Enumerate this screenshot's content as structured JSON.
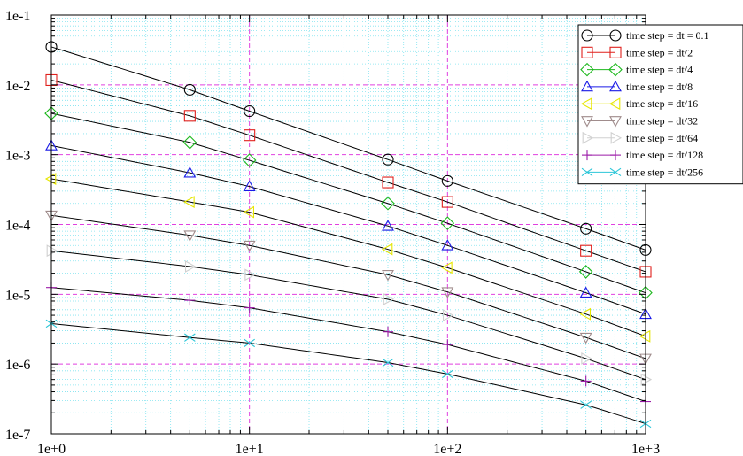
{
  "chart_data": {
    "type": "line",
    "title": "",
    "xlabel": "",
    "ylabel": "",
    "xscale": "log",
    "yscale": "log",
    "xlim": [
      1,
      1000
    ],
    "ylim": [
      1e-07,
      0.1
    ],
    "grid": true,
    "legend_position": "top-right",
    "x_tick_labels": [
      "1e+0",
      "1e+1",
      "1e+2",
      "1e+3"
    ],
    "y_tick_labels": [
      "1e-1",
      "1e-2",
      "1e-3",
      "1e-4",
      "1e-5",
      "1e-6",
      "1e-7"
    ],
    "x": [
      1,
      5,
      10,
      50,
      100,
      500,
      1000
    ],
    "series": [
      {
        "name": "time step = dt = 0.1",
        "color": "#000000",
        "marker": "circle",
        "values": [
          0.035,
          0.0085,
          0.0042,
          0.00085,
          0.00042,
          8.7e-05,
          4.3e-05
        ]
      },
      {
        "name": "time step = dt/2",
        "color": "#e0201c",
        "marker": "square",
        "values": [
          0.0117,
          0.0036,
          0.0019,
          0.0004,
          0.00021,
          4.2e-05,
          2.1e-05
        ]
      },
      {
        "name": "time step = dt/4",
        "color": "#1db81d",
        "marker": "diamond",
        "values": [
          0.0039,
          0.0015,
          0.00083,
          0.0002,
          0.000104,
          2.1e-05,
          1.05e-05
        ]
      },
      {
        "name": "time step = dt/8",
        "color": "#1a1ae6",
        "marker": "triangle-up",
        "values": [
          0.00135,
          0.00055,
          0.00035,
          9.5e-05,
          5e-05,
          1.05e-05,
          5.2e-06
        ]
      },
      {
        "name": "time step = dt/16",
        "color": "#e6e600",
        "marker": "triangle-left",
        "values": [
          0.00045,
          0.00021,
          0.00015,
          4.4e-05,
          2.4e-05,
          5.2e-06,
          2.5e-06
        ]
      },
      {
        "name": "time step = dt/32",
        "color": "#a08c8c",
        "marker": "triangle-down",
        "values": [
          0.000135,
          7e-05,
          5e-05,
          1.9e-05,
          1.08e-05,
          2.4e-06,
          1.2e-06
        ]
      },
      {
        "name": "time step = dt/64",
        "color": "#d0d0d0",
        "marker": "triangle-right",
        "values": [
          4.2e-05,
          2.5e-05,
          1.9e-05,
          8.5e-06,
          5e-06,
          1.2e-06,
          6e-07
        ]
      },
      {
        "name": "time step = dt/128",
        "color": "#9b1aa8",
        "marker": "plus",
        "values": [
          1.25e-05,
          8.2e-06,
          6.4e-06,
          2.9e-06,
          1.9e-06,
          5.7e-07,
          2.9e-07
        ]
      },
      {
        "name": "time step = dt/256",
        "color": "#2bc6d8",
        "marker": "cross",
        "values": [
          3.8e-06,
          2.4e-06,
          2e-06,
          1.05e-06,
          7.2e-07,
          2.6e-07,
          1.4e-07
        ]
      }
    ]
  }
}
